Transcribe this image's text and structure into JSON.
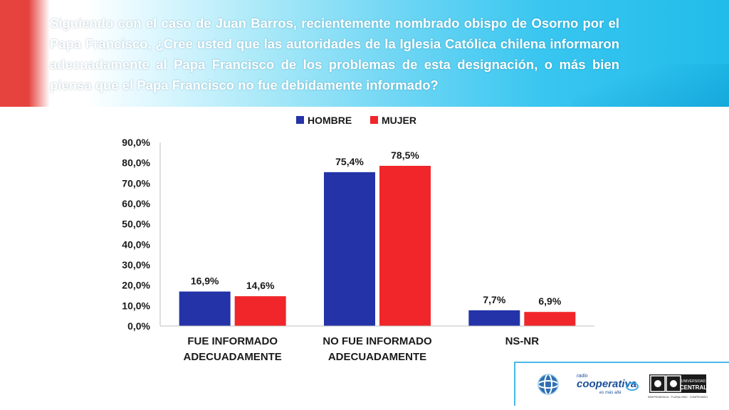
{
  "question": "Siguiendo con el caso de Juan Barros, recientemente nombrado obispo de Osorno por el Papa Francisco, ¿Cree usted que las autoridades de la Iglesia Católica chilena informaron adecuadamente al Papa Francisco de los problemas de esta designación, o más bien piensa que el Papa Francisco no fue debidamente informado?",
  "logos": {
    "cooperativa": "cooperativa",
    "cooperativa_small": "radio",
    "cooperativa_tagline": "es más allá",
    "universidad": "UNIVERSIDAD",
    "central": "CENTRAL",
    "universidad_tagline": "INDEPENDENCIA · PLURALISMO · COMPROMISO"
  },
  "chart_data": {
    "type": "bar",
    "title": "",
    "categories": [
      [
        "FUE INFORMADO",
        "ADECUADAMENTE"
      ],
      [
        "NO FUE INFORMADO",
        "ADECUADAMENTE"
      ],
      [
        "NS-NR"
      ]
    ],
    "series": [
      {
        "name": "HOMBRE",
        "color": "#2433a8",
        "values": [
          16.9,
          75.4,
          7.7
        ],
        "labels": [
          "16,9%",
          "75,4%",
          "7,7%"
        ]
      },
      {
        "name": "MUJER",
        "color": "#f0262a",
        "values": [
          14.6,
          78.5,
          6.9
        ],
        "labels": [
          "14,6%",
          "78,5%",
          "6,9%"
        ]
      }
    ],
    "ylim": [
      0,
      90
    ],
    "yticks": [
      "0,0%",
      "10,0%",
      "20,0%",
      "30,0%",
      "40,0%",
      "50,0%",
      "60,0%",
      "70,0%",
      "80,0%",
      "90,0%"
    ],
    "legend_position": "top-center",
    "grid": false
  }
}
